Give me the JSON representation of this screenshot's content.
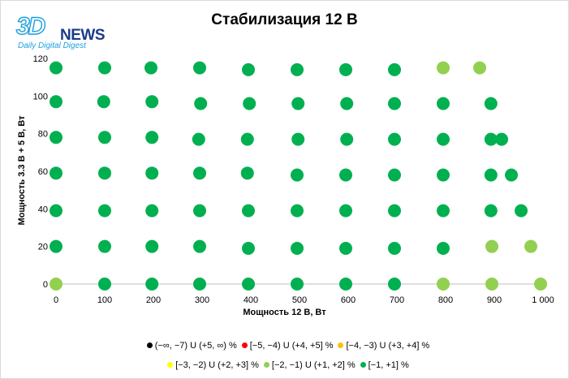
{
  "logo": {
    "brand": "3D",
    "name": "NEWS",
    "tagline": "Daily Digital Digest"
  },
  "colors": {
    "band_out": "#000000",
    "band_5": "#ff0000",
    "band_4": "#ffc000",
    "band_3": "#ffff00",
    "band_2": "#92d050",
    "band_1": "#00b050"
  },
  "chart_data": {
    "type": "scatter",
    "title": "Стабилизация 12 В",
    "xlabel": "Мощность  12 В, Вт",
    "ylabel": "Мощность  3.3 В + 5 В, Вт",
    "xlim": [
      0,
      1000
    ],
    "ylim": [
      0,
      120
    ],
    "x_ticks": [
      "0",
      "100",
      "200",
      "300",
      "400",
      "500",
      "600",
      "700",
      "800",
      "900",
      "1 000"
    ],
    "y_ticks": [
      "0",
      "20",
      "40",
      "60",
      "80",
      "100",
      "120"
    ],
    "grid": false,
    "legend_position": "bottom",
    "series": [
      {
        "name": "(−∞, −7) U (+5, ∞) %",
        "color_key": "band_out",
        "points": []
      },
      {
        "name": "[−5, −4) U (+4, +5] %",
        "color_key": "band_5",
        "points": []
      },
      {
        "name": "[−4, −3) U (+3, +4] %",
        "color_key": "band_4",
        "points": []
      },
      {
        "name": "[−3, −2) U (+2, +3] %",
        "color_key": "band_3",
        "points": []
      },
      {
        "name": "[−2, −1) U (+1, +2] %",
        "color_key": "band_2",
        "points": [
          [
            0,
            0
          ],
          [
            795,
            0
          ],
          [
            895,
            0
          ],
          [
            995,
            0
          ],
          [
            895,
            20
          ],
          [
            975,
            20
          ],
          [
            795,
            115
          ],
          [
            870,
            115
          ]
        ]
      },
      {
        "name": "[−1, +1] %",
        "color_key": "band_1",
        "points": [
          [
            0,
            115
          ],
          [
            100,
            115
          ],
          [
            195,
            115
          ],
          [
            295,
            115
          ],
          [
            395,
            114
          ],
          [
            495,
            114
          ],
          [
            595,
            114
          ],
          [
            695,
            114
          ],
          [
            0,
            97
          ],
          [
            98,
            97
          ],
          [
            197,
            97
          ],
          [
            297,
            96
          ],
          [
            397,
            96
          ],
          [
            497,
            96
          ],
          [
            597,
            96
          ],
          [
            695,
            96
          ],
          [
            795,
            96
          ],
          [
            893,
            96
          ],
          [
            0,
            78
          ],
          [
            100,
            78
          ],
          [
            197,
            78
          ],
          [
            293,
            77
          ],
          [
            393,
            77
          ],
          [
            497,
            77
          ],
          [
            597,
            77
          ],
          [
            695,
            77
          ],
          [
            795,
            77
          ],
          [
            893,
            77
          ],
          [
            915,
            77
          ],
          [
            0,
            59
          ],
          [
            100,
            59
          ],
          [
            197,
            59
          ],
          [
            295,
            59
          ],
          [
            393,
            59
          ],
          [
            495,
            58
          ],
          [
            595,
            58
          ],
          [
            695,
            58
          ],
          [
            795,
            58
          ],
          [
            893,
            58
          ],
          [
            935,
            58
          ],
          [
            0,
            39
          ],
          [
            100,
            39
          ],
          [
            197,
            39
          ],
          [
            295,
            39
          ],
          [
            395,
            39
          ],
          [
            495,
            39
          ],
          [
            595,
            39
          ],
          [
            695,
            39
          ],
          [
            795,
            39
          ],
          [
            893,
            39
          ],
          [
            955,
            39
          ],
          [
            0,
            20
          ],
          [
            100,
            20
          ],
          [
            197,
            20
          ],
          [
            295,
            20
          ],
          [
            395,
            19
          ],
          [
            495,
            19
          ],
          [
            595,
            19
          ],
          [
            695,
            19
          ],
          [
            795,
            19
          ],
          [
            100,
            0
          ],
          [
            197,
            0
          ],
          [
            295,
            0
          ],
          [
            395,
            0
          ],
          [
            495,
            0
          ],
          [
            595,
            0
          ],
          [
            695,
            0
          ]
        ]
      }
    ]
  }
}
